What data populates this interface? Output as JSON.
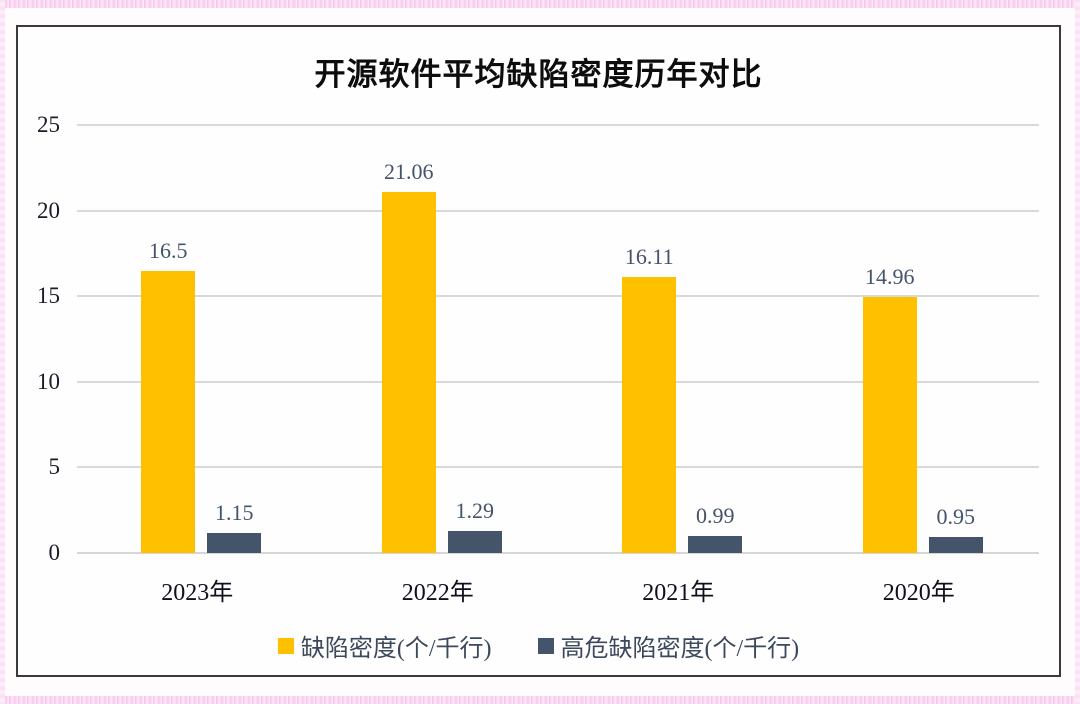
{
  "page": {
    "background": "#fffcfe",
    "pink_edge_color": "#f8c9ee",
    "frame_border_color": "#3a3a3a"
  },
  "chart_data": {
    "type": "bar",
    "title": "开源软件平均缺陷密度历年对比",
    "categories": [
      "2023年",
      "2022年",
      "2021年",
      "2020年"
    ],
    "series": [
      {
        "name": "缺陷密度(个/千行)",
        "color": "#FFC000",
        "values": [
          16.5,
          21.06,
          16.11,
          14.96
        ],
        "labels": [
          "16.5",
          "21.06",
          "16.11",
          "14.96"
        ]
      },
      {
        "name": "高危缺陷密度(个/千行)",
        "color": "#44546A",
        "values": [
          1.15,
          1.29,
          0.99,
          0.95
        ],
        "labels": [
          "1.15",
          "1.29",
          "0.99",
          "0.95"
        ]
      }
    ],
    "y_axis": {
      "min": 0,
      "max": 25,
      "step": 5,
      "ticks": [
        "0",
        "5",
        "10",
        "15",
        "20",
        "25"
      ]
    },
    "gridline_color": "#D9D9D9",
    "axis_line_color": "#D6D6D6",
    "data_label_color": "#44546A",
    "axis_text_color": "#1c1c28",
    "legend_position": "bottom",
    "grid": "horizontal-only"
  }
}
